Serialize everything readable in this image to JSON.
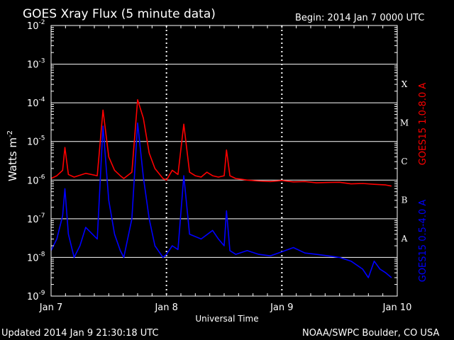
{
  "header": {
    "title": "GOES Xray Flux (5 minute data)",
    "begin": "Begin:  2014 Jan 7 0000 UTC"
  },
  "footer": {
    "updated": "Updated 2014 Jan  9 21:30:18 UTC",
    "credit": "NOAA/SWPC Boulder, CO USA"
  },
  "colors": {
    "long_channel": "#ff0000",
    "short_channel": "#0000ff",
    "grid": "#ffffff",
    "background": "#000000"
  },
  "chart_data": {
    "type": "line",
    "xlabel": "Universal Time",
    "ylabel": "Watts m",
    "ylabel_sup": "-2",
    "y_scale": "log",
    "ylim": [
      1e-09,
      0.01
    ],
    "y_ticks": [
      {
        "base": "10",
        "exp": "-9"
      },
      {
        "base": "10",
        "exp": "-8"
      },
      {
        "base": "10",
        "exp": "-7"
      },
      {
        "base": "10",
        "exp": "-6"
      },
      {
        "base": "10",
        "exp": "-5"
      },
      {
        "base": "10",
        "exp": "-4"
      },
      {
        "base": "10",
        "exp": "-3"
      },
      {
        "base": "10",
        "exp": "-2"
      }
    ],
    "x_ticks": [
      "Jan 7",
      "Jan 8",
      "Jan 9",
      "Jan 10"
    ],
    "xlim_days": [
      0,
      3
    ],
    "flare_classes": [
      "A",
      "B",
      "C",
      "M",
      "X"
    ],
    "series": [
      {
        "name": "GOES15 1.0-8.0 A",
        "x": [
          0,
          0.05,
          0.1,
          0.12,
          0.15,
          0.2,
          0.3,
          0.4,
          0.45,
          0.5,
          0.55,
          0.6,
          0.63,
          0.7,
          0.75,
          0.8,
          0.85,
          0.9,
          0.97,
          1.0,
          1.05,
          1.1,
          1.15,
          1.2,
          1.25,
          1.3,
          1.35,
          1.4,
          1.45,
          1.5,
          1.52,
          1.55,
          1.6,
          1.65,
          1.7,
          1.8,
          1.9,
          2.0,
          2.1,
          2.2,
          2.3,
          2.4,
          2.5,
          2.6,
          2.7,
          2.8,
          2.9,
          2.95
        ],
        "y": [
          1.1e-06,
          1.3e-06,
          1.8e-06,
          7e-06,
          1.4e-06,
          1.2e-06,
          1.5e-06,
          1.3e-06,
          6.5e-05,
          4e-06,
          1.8e-06,
          1.3e-06,
          1.1e-06,
          1.6e-06,
          0.00012,
          4e-05,
          5e-06,
          2e-06,
          1.1e-06,
          1e-06,
          1.8e-06,
          1.4e-06,
          2.8e-05,
          1.6e-06,
          1.3e-06,
          1.2e-06,
          1.6e-06,
          1.3e-06,
          1.2e-06,
          1.3e-06,
          6e-06,
          1.3e-06,
          1.1e-06,
          1.05e-06,
          1e-06,
          9.5e-07,
          9.2e-07,
          9.8e-07,
          9e-07,
          9.2e-07,
          8.5e-07,
          8.7e-07,
          8.8e-07,
          8e-07,
          8.2e-07,
          7.8e-07,
          7.5e-07,
          7e-07
        ]
      },
      {
        "name": "GOES15 0.5-4.0 A",
        "x": [
          0,
          0.05,
          0.1,
          0.12,
          0.15,
          0.2,
          0.25,
          0.3,
          0.4,
          0.45,
          0.5,
          0.55,
          0.6,
          0.63,
          0.7,
          0.75,
          0.8,
          0.85,
          0.9,
          0.97,
          1.0,
          1.05,
          1.1,
          1.15,
          1.2,
          1.3,
          1.4,
          1.45,
          1.5,
          1.52,
          1.55,
          1.6,
          1.7,
          1.8,
          1.9,
          2.0,
          2.1,
          2.2,
          2.3,
          2.4,
          2.5,
          2.6,
          2.7,
          2.75,
          2.8,
          2.85,
          2.9,
          2.95
        ],
        "y": [
          1.5e-08,
          3e-08,
          1.2e-07,
          6e-07,
          4e-08,
          1e-08,
          2e-08,
          6e-08,
          3e-08,
          2.5e-05,
          3e-07,
          4e-08,
          1.5e-08,
          1e-08,
          1e-07,
          3e-05,
          1.2e-06,
          1e-07,
          2e-08,
          1e-08,
          1.2e-08,
          2e-08,
          1.6e-08,
          1.3e-06,
          4e-08,
          3e-08,
          5e-08,
          3e-08,
          2e-08,
          1.6e-07,
          1.5e-08,
          1.2e-08,
          1.5e-08,
          1.2e-08,
          1.1e-08,
          1.4e-08,
          1.8e-08,
          1.3e-08,
          1.2e-08,
          1.1e-08,
          1e-08,
          8e-09,
          5e-09,
          3e-09,
          8e-09,
          5e-09,
          4e-09,
          3e-09
        ]
      }
    ]
  }
}
